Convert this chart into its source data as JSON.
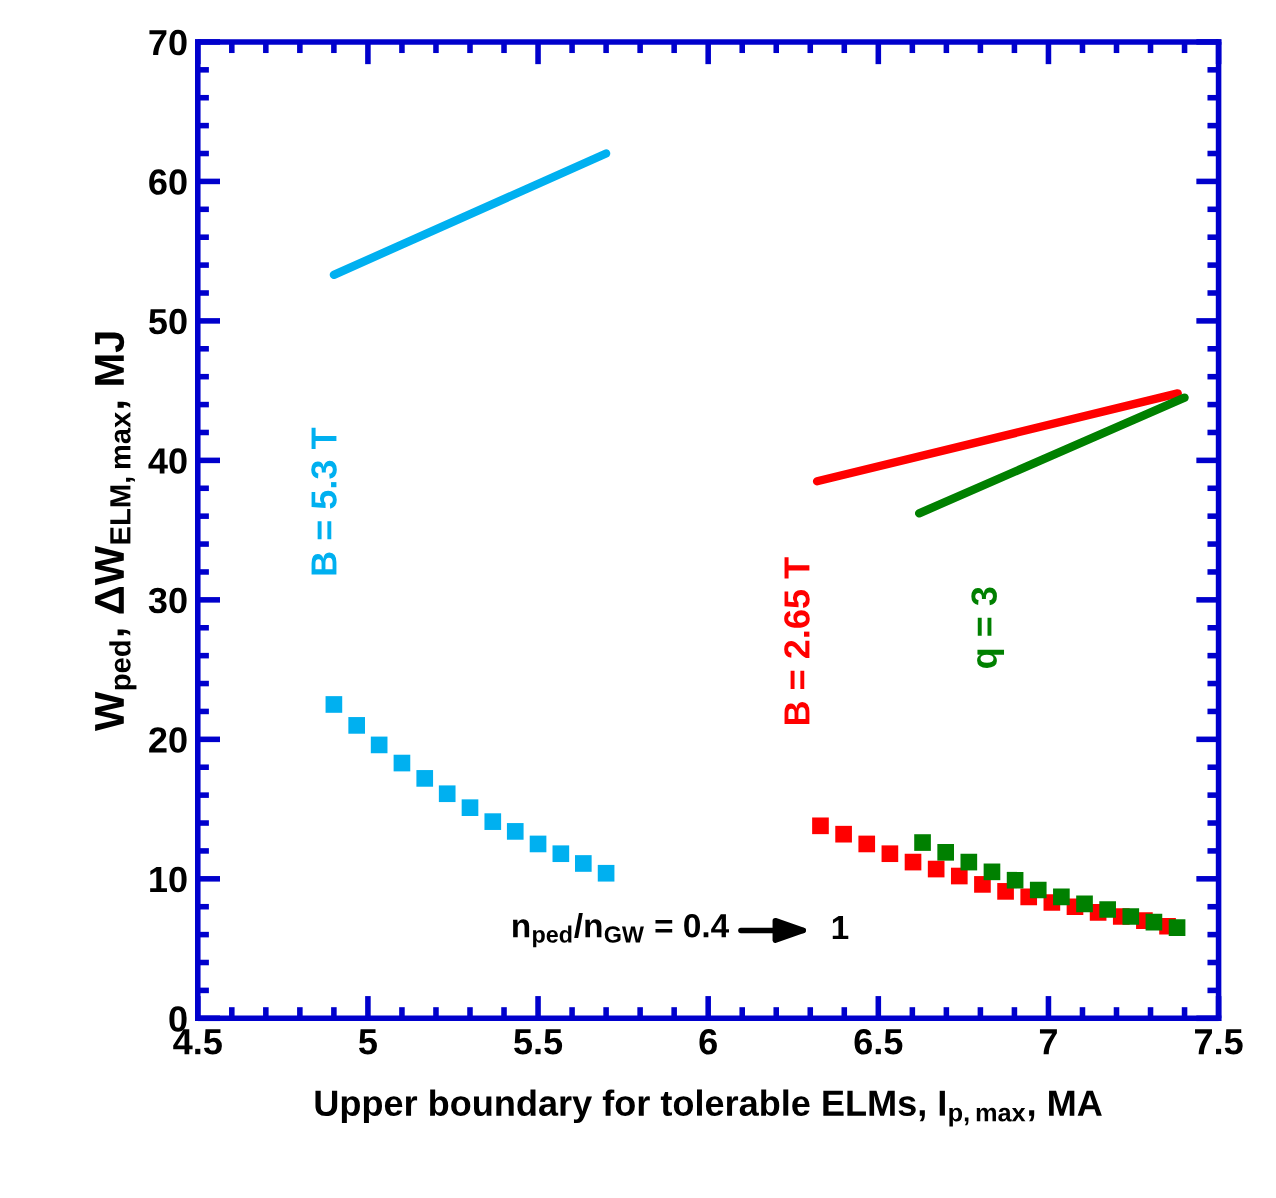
{
  "chart_data": {
    "type": "line",
    "xlabel": "Upper boundary for tolerable ELMs, I$_{p,max}$, MA",
    "ylabel": "W$_{ped}$, ΔW$_{ELM,max}$, MJ",
    "xlim": [
      4.5,
      7.5
    ],
    "xticks": [
      4.5,
      5,
      5.5,
      6,
      6.5,
      7,
      7.5
    ],
    "ylim": [
      0,
      70
    ],
    "yticks": [
      0,
      10,
      20,
      30,
      40,
      50,
      60,
      70
    ],
    "grid": false,
    "legend": false,
    "series": [
      {
        "name": "B = 5.3 T",
        "color": "#00b0f0",
        "x": [
          4.9,
          5.7
        ],
        "values": [
          53.3,
          62.0
        ]
      },
      {
        "type": "scatter",
        "marker": "square",
        "color": "#00b0f0",
        "x": [
          4.9,
          4.967,
          5.033,
          5.1,
          5.167,
          5.233,
          5.3,
          5.367,
          5.433,
          5.5,
          5.567,
          5.633,
          5.7
        ],
        "values": [
          22.5,
          21.0,
          19.6,
          18.3,
          17.2,
          16.1,
          15.1,
          14.1,
          13.4,
          12.5,
          11.8,
          11.1,
          10.4
        ]
      },
      {
        "name": "B = 2.65 T",
        "color": "#ff0000",
        "x": [
          6.32,
          7.38
        ],
        "values": [
          38.5,
          44.8
        ]
      },
      {
        "type": "scatter",
        "marker": "square",
        "color": "#ff0000",
        "x": [
          6.33,
          6.398,
          6.466,
          6.534,
          6.602,
          6.67,
          6.738,
          6.806,
          6.874,
          6.942,
          7.01,
          7.078,
          7.146,
          7.214,
          7.282,
          7.35
        ],
        "values": [
          13.8,
          13.2,
          12.5,
          11.8,
          11.2,
          10.7,
          10.2,
          9.6,
          9.1,
          8.7,
          8.3,
          8.0,
          7.6,
          7.3,
          7.0,
          6.6
        ]
      },
      {
        "name": "q = 3",
        "color": "#008000",
        "x": [
          6.62,
          7.4
        ],
        "values": [
          36.2,
          44.5
        ]
      },
      {
        "type": "scatter",
        "marker": "square",
        "color": "#008000",
        "x": [
          6.63,
          6.698,
          6.766,
          6.834,
          6.902,
          6.97,
          7.038,
          7.106,
          7.174,
          7.242,
          7.31,
          7.378
        ],
        "values": [
          12.6,
          11.9,
          11.2,
          10.5,
          9.9,
          9.2,
          8.7,
          8.2,
          7.8,
          7.3,
          6.9,
          6.5
        ]
      }
    ],
    "annotations": [
      "n$_{ped}$/n$_{GW}$ = 0.4",
      "1"
    ]
  }
}
